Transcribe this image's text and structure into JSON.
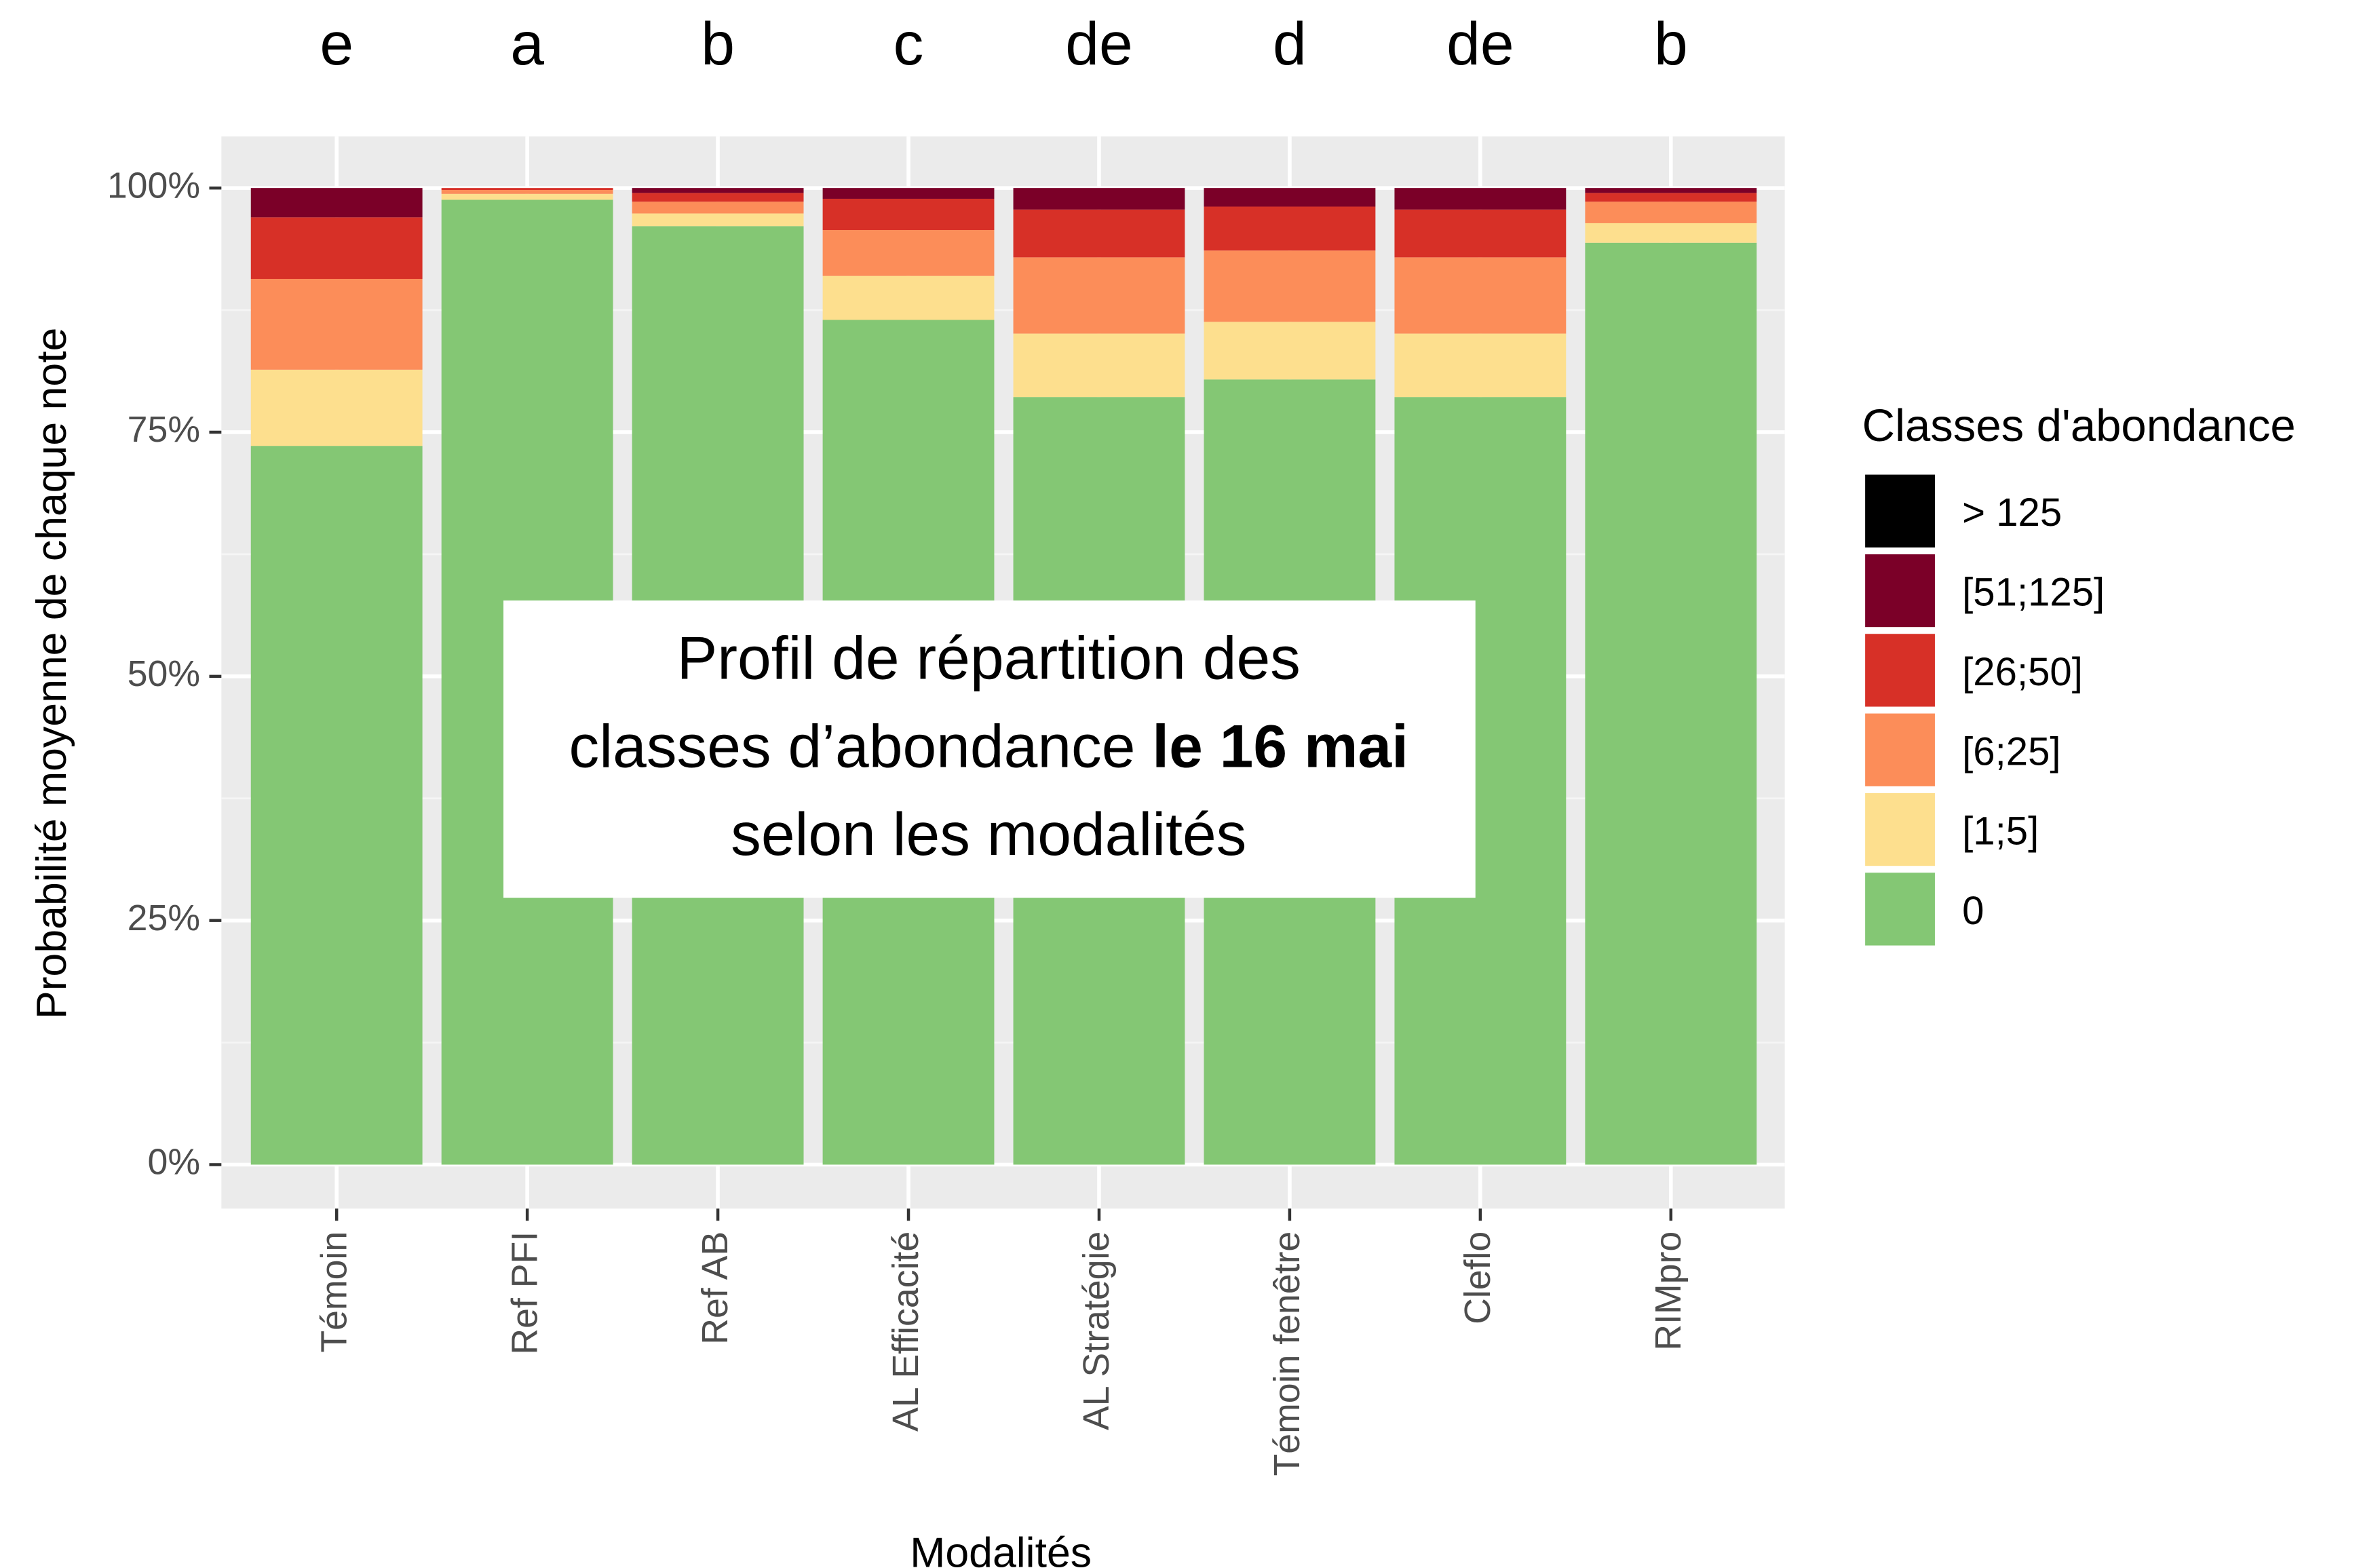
{
  "chart_data": {
    "type": "stacked_bar",
    "y_label": "Probabilité moyenne de chaque note",
    "x_label": "Modalités",
    "legend_title": "Classes d'abondance",
    "categories": [
      "Témoin",
      "Ref PFI",
      "Ref AB",
      "AL Efficacité",
      "AL Stratégie",
      "Témoin fenêtre",
      "Cleflo",
      "RIMpro"
    ],
    "annotations": [
      "e",
      "a",
      "b",
      "c",
      "de",
      "d",
      "de",
      "b"
    ],
    "series": [
      {
        "name": "0",
        "color": "#84c774",
        "values": [
          73.6,
          98.8,
          96.1,
          86.5,
          78.6,
          80.4,
          78.6,
          94.4
        ]
      },
      {
        "name": "[1;5]",
        "color": "#fddf8e",
        "values": [
          7.8,
          0.6,
          1.3,
          4.5,
          6.5,
          5.9,
          6.5,
          2.0
        ]
      },
      {
        "name": "[6;25]",
        "color": "#fc8d59",
        "values": [
          9.3,
          0.4,
          1.2,
          4.7,
          7.8,
          7.3,
          7.8,
          2.2
        ]
      },
      {
        "name": "[26;50]",
        "color": "#d73027",
        "values": [
          6.3,
          0.2,
          0.9,
          3.2,
          4.9,
          4.5,
          4.9,
          0.9
        ]
      },
      {
        "name": "[51;125]",
        "color": "#7b0028",
        "values": [
          3.0,
          0,
          0.5,
          1.1,
          2.2,
          1.9,
          2.2,
          0.5
        ]
      },
      {
        "name": "> 125",
        "color": "#000000",
        "values": [
          0,
          0,
          0,
          0,
          0,
          0,
          0,
          0
        ]
      }
    ],
    "ylim": [
      0,
      100
    ],
    "yticks": [
      {
        "value": 0,
        "label": "0%"
      },
      {
        "value": 25,
        "label": "25%"
      },
      {
        "value": 50,
        "label": "50%"
      },
      {
        "value": 75,
        "label": "75%"
      },
      {
        "value": 100,
        "label": "100%"
      }
    ],
    "grid": true,
    "legend_position": "right",
    "overlay": {
      "lines": [
        [
          "Profil de répartition des"
        ],
        [
          "classes d’abondance ",
          "le 16 mai"
        ],
        [
          "selon les modalités"
        ]
      ]
    }
  }
}
